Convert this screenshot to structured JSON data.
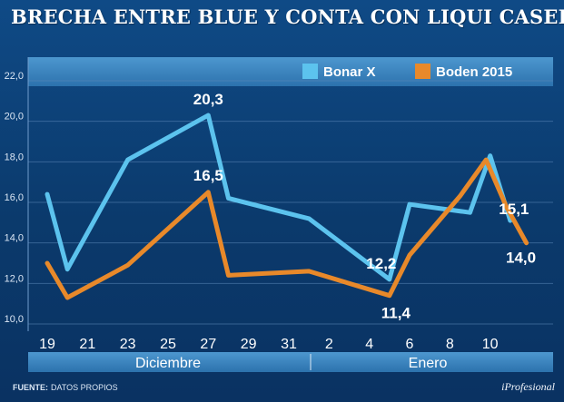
{
  "chart_data": {
    "type": "line",
    "title": "BRECHA ENTRE BLUE Y CONTA CON LIQUI CASERO",
    "xlabel": "",
    "ylabel": "",
    "ylim": [
      10.0,
      22.0
    ],
    "yticks": [
      "10,0",
      "12,0",
      "14,0",
      "16,0",
      "18,0",
      "20,0",
      "22,0"
    ],
    "ytick_values": [
      10,
      12,
      14,
      16,
      18,
      20,
      22
    ],
    "xticks": [
      "19",
      "21",
      "23",
      "25",
      "27",
      "29",
      "31",
      "2",
      "4",
      "6",
      "8",
      "10"
    ],
    "months": [
      "Diciembre",
      "Enero"
    ],
    "grid": true,
    "legend_position": "top-right",
    "x": [
      0,
      1,
      4,
      8,
      9,
      13,
      17,
      18,
      21,
      22
    ],
    "series": [
      {
        "name": "Bonar X",
        "color": "#5cc3ee",
        "values": [
          16.4,
          12.7,
          18.1,
          20.3,
          16.2,
          15.2,
          12.2,
          15.9,
          15.5,
          18.3,
          15.1
        ],
        "x": [
          0,
          1,
          4,
          8,
          9,
          13,
          17,
          18,
          21,
          22,
          23
        ]
      },
      {
        "name": "Boden 2015",
        "color": "#e8892a",
        "values": [
          13.0,
          11.3,
          12.9,
          16.5,
          12.4,
          12.6,
          11.4,
          13.4,
          16.3,
          18.1,
          15.8,
          14.0
        ],
        "x": [
          0,
          1,
          4,
          8,
          9,
          13,
          17,
          18,
          20.5,
          21.8,
          22.8,
          23.8
        ]
      }
    ],
    "data_labels": [
      {
        "series": "Bonar X",
        "text": "20,3",
        "x": 8,
        "y": 20.3
      },
      {
        "series": "Boden 2015",
        "text": "16,5",
        "x": 8,
        "y": 16.5
      },
      {
        "series": "Bonar X",
        "text": "12,2",
        "x": 17,
        "y": 12.2
      },
      {
        "series": "Boden 2015",
        "text": "11,4",
        "x": 17,
        "y": 11.4
      },
      {
        "series": "Bonar X",
        "text": "15,1",
        "x": 23,
        "y": 15.1
      },
      {
        "series": "Boden 2015",
        "text": "14,0",
        "x": 23.8,
        "y": 14.0
      }
    ]
  },
  "footer": {
    "source_label": "FUENTE:",
    "source_text": "DATOS PROPIOS",
    "brand": "iProfesional"
  }
}
